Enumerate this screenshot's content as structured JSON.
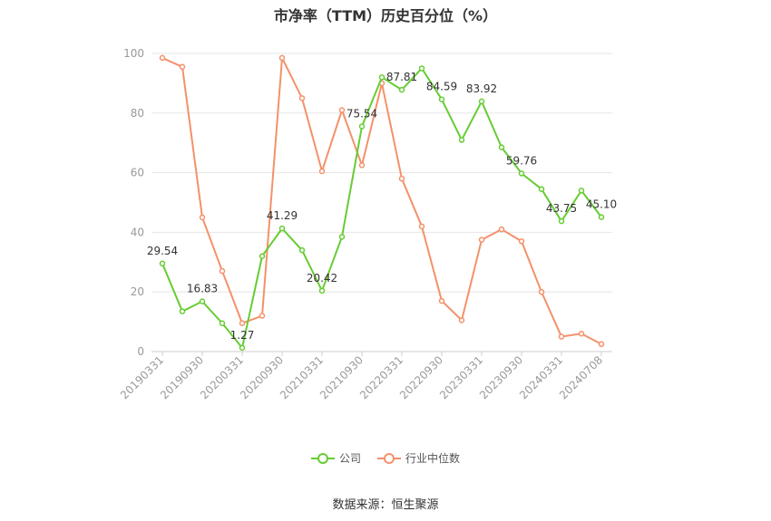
{
  "chart_data": {
    "type": "line",
    "title": "市净率（TTM）历史百分位（%）",
    "source": "数据来源：恒生聚源",
    "ylim": [
      0,
      100
    ],
    "yticks": [
      0,
      20,
      40,
      60,
      80,
      100
    ],
    "x_tick_labels": [
      "20190331",
      "20190930",
      "20200331",
      "20200930",
      "20210331",
      "20210930",
      "20220331",
      "20220930",
      "20230331",
      "20230930",
      "20240331",
      "20240708"
    ],
    "grid": true,
    "legend_position": "bottom",
    "series": [
      {
        "name": "公司",
        "color": "#66cc33",
        "values": [
          29.54,
          13.5,
          16.83,
          9.5,
          1.27,
          32,
          41.29,
          34,
          20.42,
          38.5,
          75.54,
          92,
          87.81,
          95,
          84.59,
          71,
          83.92,
          68.5,
          59.76,
          54.5,
          43.75,
          54,
          45.1
        ],
        "labels": {
          "0": "29.54",
          "2": "16.83",
          "4": "1.27",
          "6": "41.29",
          "8": "20.42",
          "10": "75.54",
          "12": "87.81",
          "14": "84.59",
          "16": "83.92",
          "18": "59.76",
          "20": "43.75",
          "22": "45.10"
        }
      },
      {
        "name": "行业中位数",
        "color": "#f4916a",
        "values": [
          98.5,
          95.5,
          45,
          27,
          9.5,
          12,
          98.5,
          85,
          60.5,
          81,
          62.5,
          90,
          58,
          42,
          17,
          10.5,
          37.5,
          41,
          37,
          20,
          5,
          6,
          2.5
        ]
      }
    ]
  }
}
